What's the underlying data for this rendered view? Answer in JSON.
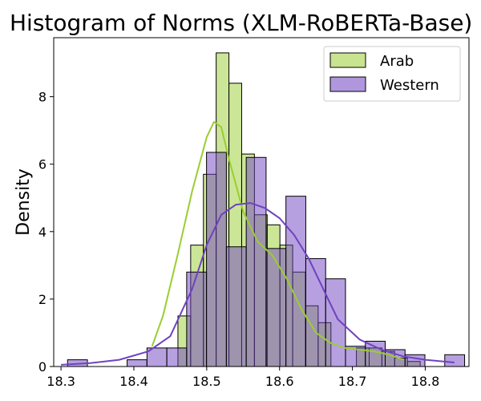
{
  "chart_data": {
    "type": "histogram",
    "title": "Histogram of Norms (XLM-RoBERTa-Base)",
    "xlabel": "",
    "ylabel": "Density",
    "xlim": [
      18.29,
      18.86
    ],
    "ylim": [
      0,
      9.75
    ],
    "xticks": [
      "18.3",
      "18.4",
      "18.5",
      "18.6",
      "18.7",
      "18.8"
    ],
    "yticks": [
      "0",
      "2",
      "4",
      "6",
      "8"
    ],
    "legend_position": "upper-right",
    "series": [
      {
        "name": "Arab",
        "color": "#9acd32",
        "bin_left": 18.4605,
        "bin_width": 0.0175,
        "density": [
          1.5,
          3.6,
          5.7,
          9.3,
          8.4,
          6.3,
          4.5,
          4.2,
          3.6,
          2.8,
          1.8,
          1.3,
          0.0,
          0.0,
          0.55,
          0.55,
          0.45,
          0.25,
          0.15
        ],
        "kde_x": [
          18.425,
          18.44,
          18.46,
          18.48,
          18.5,
          18.51,
          18.52,
          18.53,
          18.55,
          18.57,
          18.59,
          18.61,
          18.63,
          18.65,
          18.67,
          18.69,
          18.71,
          18.73,
          18.75,
          18.77
        ],
        "kde_y": [
          0.6,
          1.5,
          3.3,
          5.2,
          6.8,
          7.25,
          7.1,
          6.2,
          4.6,
          3.7,
          3.3,
          2.6,
          1.7,
          1.0,
          0.7,
          0.55,
          0.5,
          0.45,
          0.35,
          0.2
        ]
      },
      {
        "name": "Western",
        "color": "#6f42c1",
        "bin_left": 18.309,
        "bin_width": 0.02725,
        "density": [
          0.2,
          0.0,
          0.0,
          0.2,
          0.55,
          0.55,
          2.8,
          6.35,
          3.55,
          6.2,
          3.5,
          5.05,
          3.2,
          2.6,
          0.6,
          0.75,
          0.5,
          0.35,
          0.0,
          0.35
        ],
        "kde_x": [
          18.3,
          18.34,
          18.38,
          18.42,
          18.45,
          18.48,
          18.5,
          18.52,
          18.54,
          18.56,
          18.58,
          18.6,
          18.62,
          18.64,
          18.66,
          18.68,
          18.71,
          18.74,
          18.77,
          18.8,
          18.84
        ],
        "kde_y": [
          0.05,
          0.1,
          0.2,
          0.45,
          0.9,
          2.3,
          3.6,
          4.5,
          4.8,
          4.85,
          4.7,
          4.4,
          3.9,
          3.2,
          2.3,
          1.4,
          0.8,
          0.5,
          0.3,
          0.2,
          0.12
        ]
      }
    ]
  }
}
